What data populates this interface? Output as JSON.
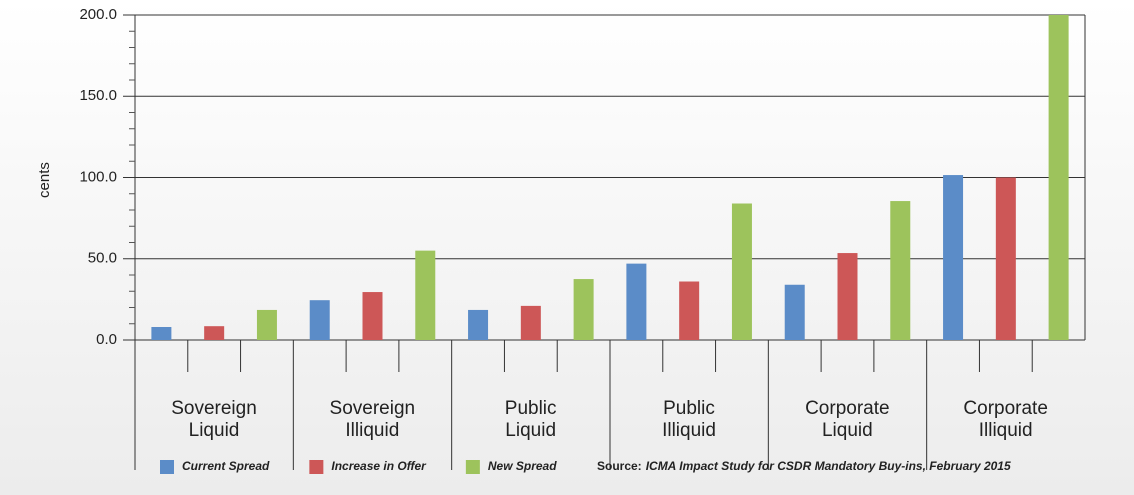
{
  "chart_data": {
    "type": "bar",
    "y_label": "cents",
    "categories": [
      "Sovereign\nLiquid",
      "Sovereign\nIlliquid",
      "Public\nLiquid",
      "Public\nIlliquid",
      "Corporate\nLiquid",
      "Corporate\nIlliquid"
    ],
    "series": [
      {
        "name": "Current Spread",
        "color": "#5b8cc8",
        "values": [
          8,
          24.5,
          18.5,
          47,
          34,
          101.5
        ]
      },
      {
        "name": "Increase in Offer",
        "color": "#cd5757",
        "values": [
          8.5,
          29.5,
          21,
          36,
          53.5,
          100
        ]
      },
      {
        "name": "New Spread",
        "color": "#9dc35c",
        "values": [
          18.5,
          55,
          37.5,
          84,
          85.5,
          200
        ]
      }
    ],
    "ylim": [
      0,
      200
    ],
    "yticks": [
      {
        "value": 0,
        "label": "0.0"
      },
      {
        "value": 50,
        "label": "50.0"
      },
      {
        "value": 100,
        "label": "100.0"
      },
      {
        "value": 150,
        "label": "150.0"
      },
      {
        "value": 200,
        "label": "200.0"
      }
    ],
    "yminorticks": [
      10,
      20,
      30,
      40,
      60,
      70,
      80,
      90,
      110,
      120,
      130,
      140,
      160,
      170,
      180,
      190
    ],
    "grid": true,
    "legend": "bottom",
    "source_label": "Source:",
    "source": "ICMA Impact Study for CSDR Mandatory Buy-ins, February 2015"
  }
}
